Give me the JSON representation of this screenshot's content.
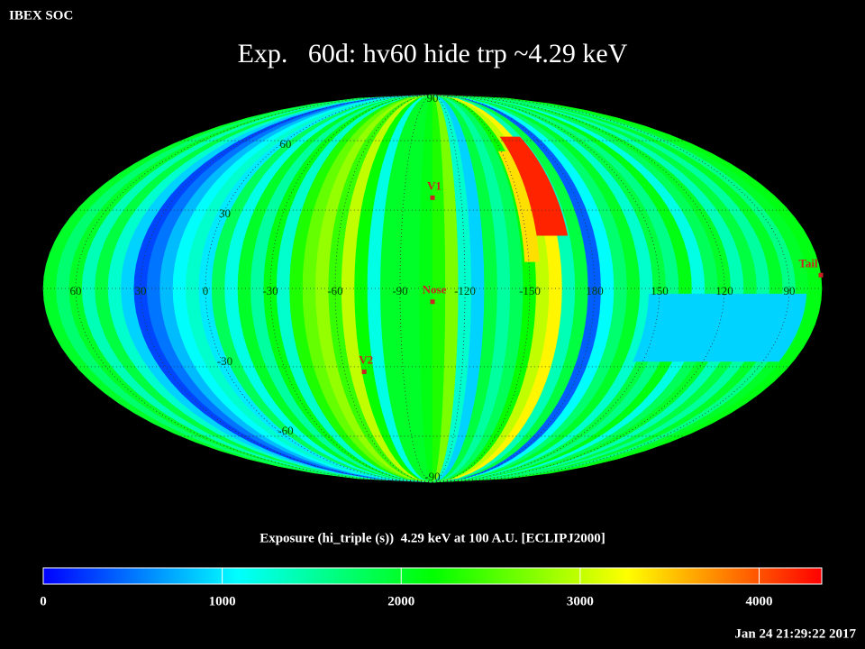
{
  "header": {
    "org": "IBEX SOC",
    "timestamp": "Jan 24 21:29:22 2017"
  },
  "chart_data": {
    "type": "skymap",
    "title": "Exp.   60d: hv60 hide trp ~4.29 keV",
    "projection": "mollweide",
    "center_lon": -105,
    "grid": true,
    "lon_ticks": [
      60,
      30,
      0,
      -30,
      -60,
      -90,
      -120,
      -150,
      180,
      150,
      120,
      90
    ],
    "lat_ticks": [
      90,
      60,
      30,
      -30,
      -60,
      -90
    ],
    "strips_from_left": [
      2000,
      1700,
      2000,
      1400,
      1900,
      1300,
      900,
      300,
      500,
      800,
      1100,
      1300,
      1000,
      1800,
      1200,
      2000,
      1500,
      2100,
      1300,
      2300,
      2600,
      2800,
      2400,
      3000,
      2200,
      1200,
      2000,
      2000,
      2000,
      2100,
      2300,
      2700,
      1300,
      900,
      1900,
      1500,
      1800,
      2200,
      3000,
      3300,
      1400,
      1900,
      400,
      1100,
      1700,
      2000,
      1300,
      1900,
      1600,
      2100,
      1200,
      1800,
      2000,
      1400,
      1900,
      1500,
      2000,
      1600,
      2000,
      2100
    ],
    "patches": [
      {
        "lon": [
          -155,
          -170
        ],
        "lat": [
          20,
          62
        ],
        "value": 4200
      },
      {
        "lon": [
          -148,
          -155
        ],
        "lat": [
          10,
          55
        ],
        "value": 3400
      },
      {
        "lon": [
          155,
          82
        ],
        "lat": [
          -28,
          -2
        ],
        "value": 900
      }
    ],
    "markers": [
      {
        "label": "V1",
        "lon": -105,
        "lat": 35,
        "color": "#cc2222"
      },
      {
        "label": "Nose",
        "lon": -105,
        "lat": -5,
        "color": "#cc2222"
      },
      {
        "label": "V2",
        "lon": -70,
        "lat": -32,
        "color": "#cc2222"
      },
      {
        "label": "Tail",
        "lon": 75,
        "lat": 5,
        "color": "#cc2222"
      }
    ],
    "colorbar_label": "Exposure (hi_triple (s))  4.29 keV at 100 A.U. [ECLIPJ2000]",
    "clim": [
      0,
      4350
    ],
    "cticks": [
      0,
      1000,
      2000,
      3000,
      4000
    ],
    "colormap": [
      "#0000ff",
      "#00ffff",
      "#00ff00",
      "#ffff00",
      "#ff0000"
    ]
  }
}
